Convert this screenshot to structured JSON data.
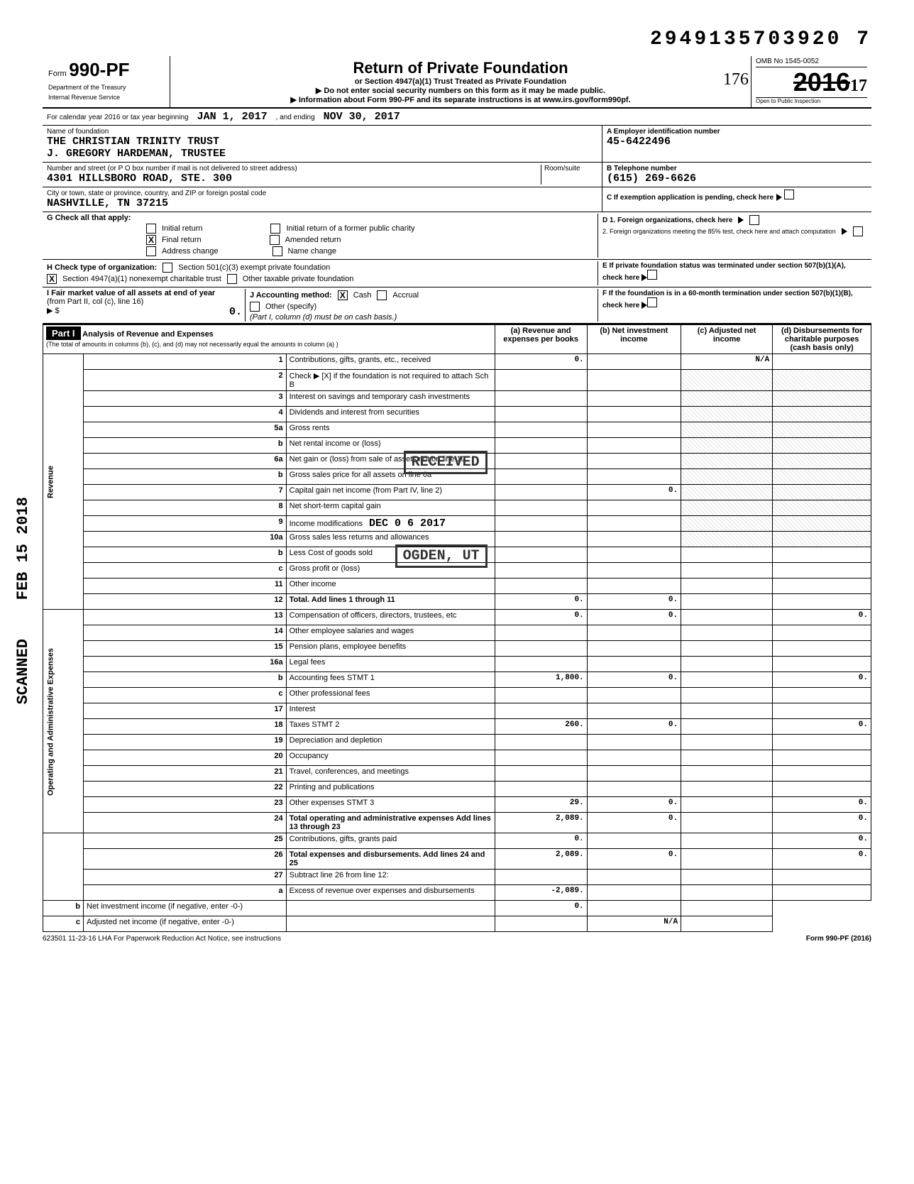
{
  "topNumber": "2949135703920 7",
  "form": {
    "prefix": "Form",
    "number": "990-PF",
    "dept1": "Department of the Treasury",
    "dept2": "Internal Revenue Service"
  },
  "title": {
    "main": "Return of Private Foundation",
    "sub": "or Section 4947(a)(1) Trust Treated as Private Foundation",
    "warn": "▶ Do not enter social security numbers on this form as it may be made public.",
    "info": "▶ Information about Form 990-PF and its separate instructions is at www.irs.gov/form990pf."
  },
  "rightBox": {
    "omb": "OMB No 1545-0052",
    "yearStrike": "2016",
    "yearHand": "17",
    "open": "Open to Public Inspection",
    "hand176": "176"
  },
  "calendar": {
    "label": "For calendar year 2016 or tax year beginning",
    "begin": "JAN 1, 2017",
    "andEnding": ", and ending",
    "end": "NOV 30, 2017"
  },
  "foundation": {
    "nameLabel": "Name of foundation",
    "name1": "THE CHRISTIAN TRINITY TRUST",
    "name2": "J. GREGORY HARDEMAN, TRUSTEE",
    "addrLabel": "Number and street (or P O box number if mail is not delivered to street address)",
    "addr": "4301 HILLSBORO ROAD, STE. 300",
    "roomLabel": "Room/suite",
    "cityLabel": "City or town, state or province, country, and ZIP or foreign postal code",
    "city": "NASHVILLE, TN  37215"
  },
  "boxA": {
    "label": "A Employer identification number",
    "value": "45-6422496"
  },
  "boxB": {
    "label": "B Telephone number",
    "value": "(615) 269-6626"
  },
  "boxC": {
    "label": "C If exemption application is pending, check here"
  },
  "boxD": {
    "d1": "D 1. Foreign organizations, check here",
    "d2": "2. Foreign organizations meeting the 85% test, check here and attach computation"
  },
  "boxE": {
    "label": "E If private foundation status was terminated under section 507(b)(1)(A), check here"
  },
  "boxF": {
    "label": "F If the foundation is in a 60-month termination under section 507(b)(1)(B), check here"
  },
  "sectionG": {
    "label": "G Check all that apply:",
    "items": [
      "Initial return",
      "Final return",
      "Address change",
      "Initial return of a former public charity",
      "Amended return",
      "Name change"
    ],
    "finalChecked": true
  },
  "sectionH": {
    "label": "H Check type of organization:",
    "opt1": "Section 501(c)(3) exempt private foundation",
    "opt2": "Section 4947(a)(1) nonexempt charitable trust",
    "opt2Checked": true,
    "opt3": "Other taxable private foundation"
  },
  "sectionI": {
    "label": "I Fair market value of all assets at end of year",
    "from": "(from Part II, col (c), line 16)",
    "arrow": "▶ $",
    "value": "0."
  },
  "sectionJ": {
    "label": "J Accounting method:",
    "cash": "Cash",
    "cashChecked": true,
    "accrual": "Accrual",
    "other": "Other (specify)",
    "note": "(Part I, column (d) must be on cash basis.)"
  },
  "part1": {
    "title": "Part I",
    "heading": "Analysis of Revenue and Expenses",
    "subheading": "(The total of amounts in columns (b), (c), and (d) may not necessarily equal the amounts in column (a) )",
    "cols": {
      "a": "(a) Revenue and expenses per books",
      "b": "(b) Net investment income",
      "c": "(c) Adjusted net income",
      "d": "(d) Disbursements for charitable purposes (cash basis only)"
    }
  },
  "revStamp": "RECEIVED",
  "dateStamp": "DEC 0 6 2017",
  "ogdenStamp": "OGDEN, UT",
  "sideDate": "FEB 15 2018",
  "sideScanned": "SCANNED",
  "rows": [
    {
      "n": "1",
      "desc": "Contributions, gifts, grants, etc., received",
      "a": "0.",
      "c": "N/A"
    },
    {
      "n": "2",
      "desc": "Check ▶ [X] if the foundation is not required to attach Sch B"
    },
    {
      "n": "3",
      "desc": "Interest on savings and temporary cash investments"
    },
    {
      "n": "4",
      "desc": "Dividends and interest from securities"
    },
    {
      "n": "5a",
      "desc": "Gross rents"
    },
    {
      "n": "b",
      "desc": "Net rental income or (loss)"
    },
    {
      "n": "6a",
      "desc": "Net gain or (loss) from sale of assets not on line 10"
    },
    {
      "n": "b",
      "desc": "Gross sales price for all assets on line 6a"
    },
    {
      "n": "7",
      "desc": "Capital gain net income (from Part IV, line 2)",
      "b": "0."
    },
    {
      "n": "8",
      "desc": "Net short-term capital gain"
    },
    {
      "n": "9",
      "desc": "Income modifications"
    },
    {
      "n": "10a",
      "desc": "Gross sales less returns and allowances"
    },
    {
      "n": "b",
      "desc": "Less Cost of goods sold"
    },
    {
      "n": "c",
      "desc": "Gross profit or (loss)"
    },
    {
      "n": "11",
      "desc": "Other income"
    },
    {
      "n": "12",
      "desc": "Total. Add lines 1 through 11",
      "a": "0.",
      "b": "0.",
      "bold": true
    },
    {
      "n": "13",
      "desc": "Compensation of officers, directors, trustees, etc",
      "a": "0.",
      "b": "0.",
      "d": "0."
    },
    {
      "n": "14",
      "desc": "Other employee salaries and wages"
    },
    {
      "n": "15",
      "desc": "Pension plans, employee benefits"
    },
    {
      "n": "16a",
      "desc": "Legal fees"
    },
    {
      "n": "b",
      "desc": "Accounting fees                STMT 1",
      "a": "1,800.",
      "b": "0.",
      "d": "0."
    },
    {
      "n": "c",
      "desc": "Other professional fees"
    },
    {
      "n": "17",
      "desc": "Interest"
    },
    {
      "n": "18",
      "desc": "Taxes                          STMT 2",
      "a": "260.",
      "b": "0.",
      "d": "0."
    },
    {
      "n": "19",
      "desc": "Depreciation and depletion"
    },
    {
      "n": "20",
      "desc": "Occupancy"
    },
    {
      "n": "21",
      "desc": "Travel, conferences, and meetings"
    },
    {
      "n": "22",
      "desc": "Printing and publications"
    },
    {
      "n": "23",
      "desc": "Other expenses                 STMT 3",
      "a": "29.",
      "b": "0.",
      "d": "0."
    },
    {
      "n": "24",
      "desc": "Total operating and administrative expenses Add lines 13 through 23",
      "a": "2,089.",
      "b": "0.",
      "d": "0.",
      "bold": true
    },
    {
      "n": "25",
      "desc": "Contributions, gifts, grants paid",
      "a": "0.",
      "d": "0."
    },
    {
      "n": "26",
      "desc": "Total expenses and disbursements. Add lines 24 and 25",
      "a": "2,089.",
      "b": "0.",
      "d": "0.",
      "bold": true
    },
    {
      "n": "27",
      "desc": "Subtract line 26 from line 12:"
    },
    {
      "n": "a",
      "desc": "Excess of revenue over expenses and disbursements",
      "a": "-2,089."
    },
    {
      "n": "b",
      "desc": "Net investment income (if negative, enter -0-)",
      "b": "0."
    },
    {
      "n": "c",
      "desc": "Adjusted net income (if negative, enter -0-)",
      "c": "N/A"
    }
  ],
  "vertLabels": {
    "revenue": "Revenue",
    "expenses": "Operating and Administrative Expenses"
  },
  "footer": {
    "left": "623501 11-23-16   LHA  For Paperwork Reduction Act Notice, see instructions",
    "right": "Form 990-PF (2016)"
  }
}
